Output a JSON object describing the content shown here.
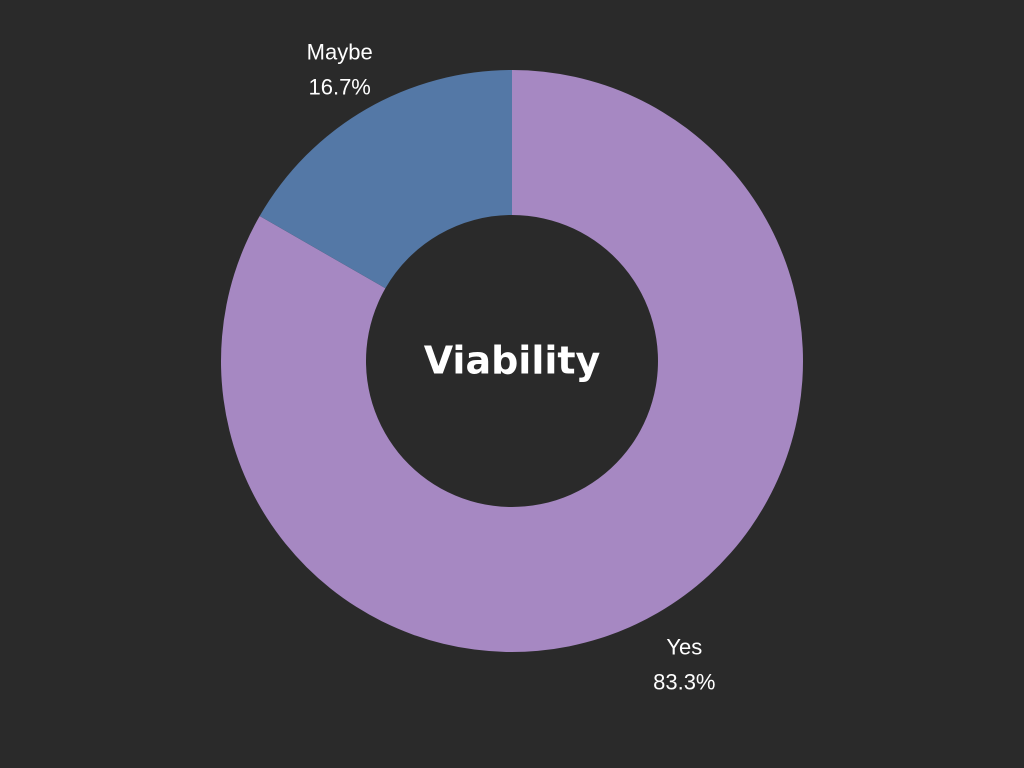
{
  "chart_data": {
    "type": "pie",
    "title": "Viability",
    "categories": [
      "Yes",
      "Maybe"
    ],
    "values": [
      83.3,
      16.7
    ],
    "value_labels": [
      "83.3%",
      "16.7%"
    ],
    "colors": [
      "#a688c2",
      "#5478a6"
    ],
    "background": "#2a2a2a",
    "donut": true,
    "start": "12-o'clock",
    "direction": "clockwise",
    "legend": "none"
  }
}
